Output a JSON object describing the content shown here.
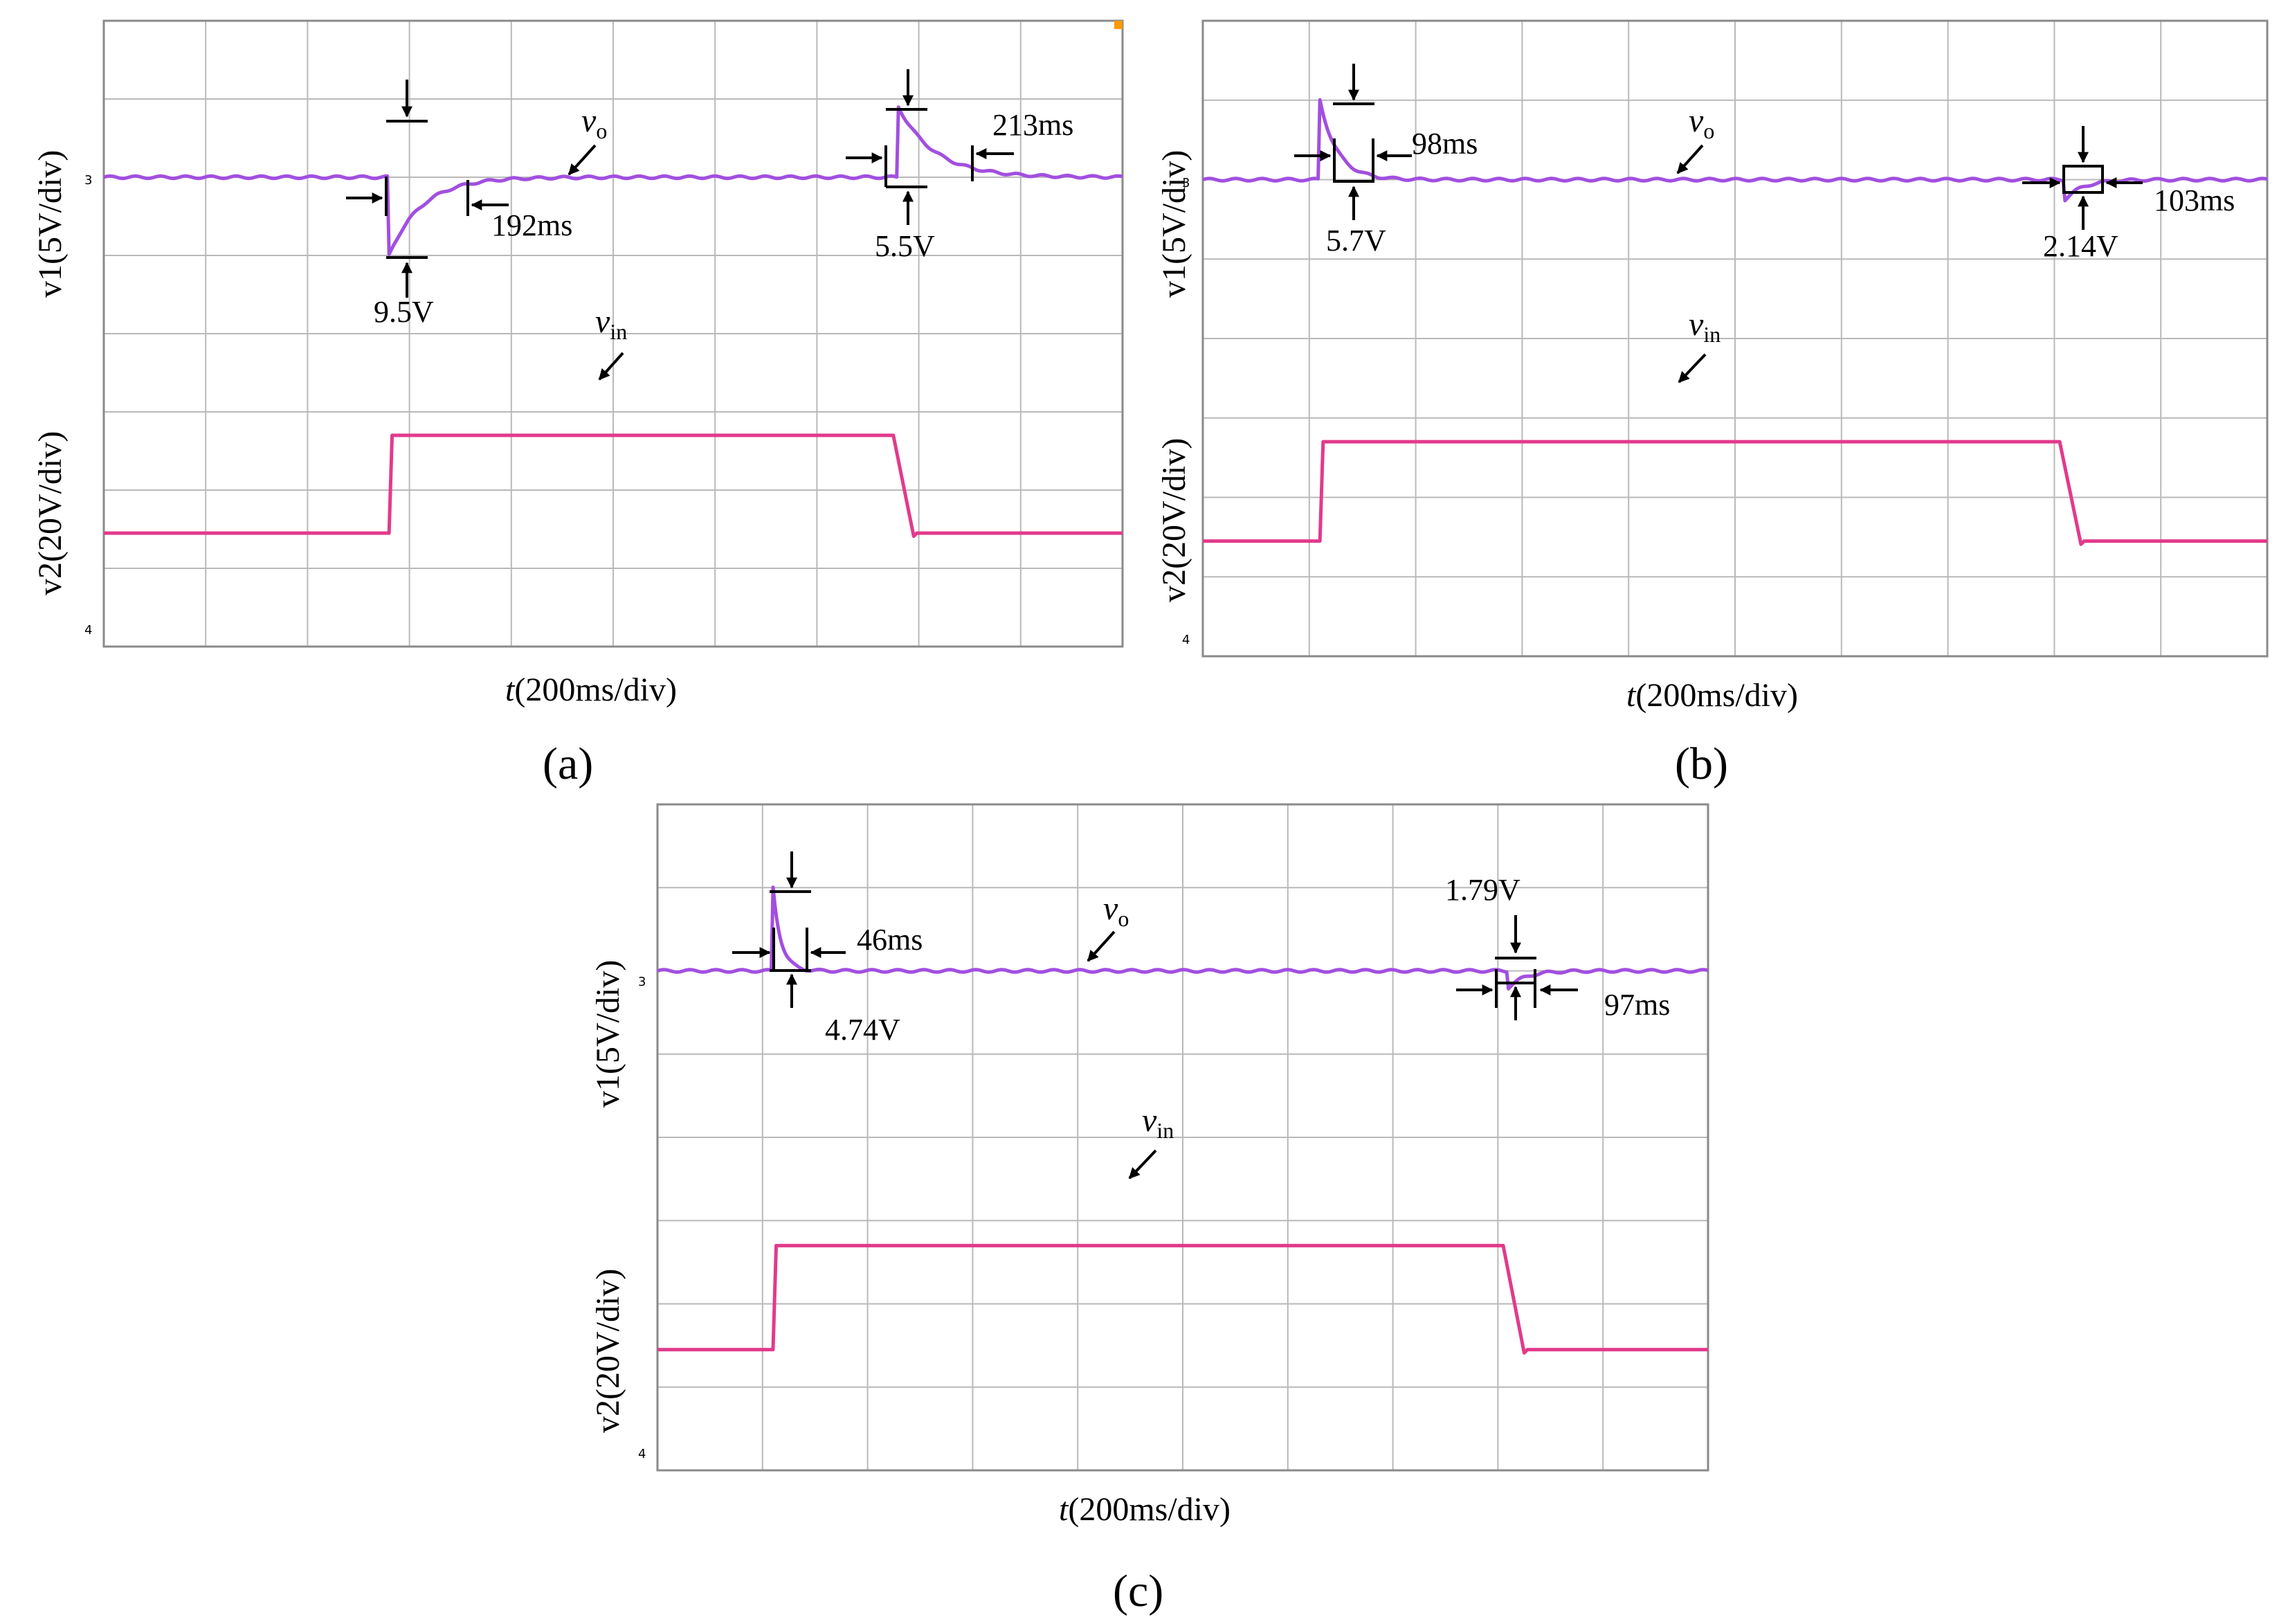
{
  "chart_data": [
    {
      "id": "a",
      "type": "line",
      "subplot_label": "(a)",
      "x_label_italic": "t",
      "x_label_rest": "(200ms/div)",
      "y_label_top": "v1(5V/div)",
      "y_label_bottom": "v2(20V/div)",
      "ch3_marker": "3",
      "ch4_marker": "4",
      "series": [
        {
          "name": "vo",
          "label": "v",
          "sub": "o",
          "channel": 3,
          "scale": "5V/div",
          "events": [
            {
              "time_div": 2.8,
              "dip_div": -1.0,
              "recovery_ms": 192,
              "annotation_volt": "9.5V",
              "annotation_time": "192ms"
            },
            {
              "time_div": 7.8,
              "peak_div": 0.9,
              "recovery_ms": 213,
              "annotation_volt": "5.5V",
              "annotation_time": "213ms"
            }
          ]
        },
        {
          "name": "vin",
          "label": "v",
          "sub": "in",
          "channel": 4,
          "scale": "20V/div",
          "step_up_div": 2.8,
          "step_down_div": 7.8,
          "low_level_div": 2.6,
          "high_level_div": 3.8
        }
      ]
    },
    {
      "id": "b",
      "type": "line",
      "subplot_label": "(b)",
      "x_label_italic": "t",
      "x_label_rest": "(200ms/div)",
      "y_label_top": "v1(5V/div)",
      "y_label_bottom": "v2(20V/div)",
      "ch3_marker": "3",
      "ch4_marker": "4",
      "series": [
        {
          "name": "vo",
          "label": "v",
          "sub": "o",
          "channel": 3,
          "scale": "5V/div",
          "events": [
            {
              "time_div": 1.1,
              "peak_div": 1.0,
              "recovery_ms": 98,
              "annotation_volt": "5.7V",
              "annotation_time": "98ms"
            },
            {
              "time_div": 8.1,
              "dip_div": -0.25,
              "recovery_ms": 103,
              "annotation_volt": "2.14V",
              "annotation_time": "103ms"
            }
          ]
        },
        {
          "name": "vin",
          "label": "v",
          "sub": "in",
          "channel": 4,
          "scale": "20V/div",
          "step_up_div": 1.1,
          "step_down_div": 8.1
        }
      ]
    },
    {
      "id": "c",
      "type": "line",
      "subplot_label": "(c)",
      "x_label_italic": "t",
      "x_label_rest": "(200ms/div)",
      "y_label_top": "v1(5V/div)",
      "y_label_bottom": "v2(20V/div)",
      "ch3_marker": "3",
      "ch4_marker": "4",
      "series": [
        {
          "name": "vo",
          "label": "v",
          "sub": "o",
          "channel": 3,
          "scale": "5V/div",
          "events": [
            {
              "time_div": 1.1,
              "peak_div": 1.0,
              "recovery_ms": 46,
              "annotation_volt": "4.74V",
              "annotation_time": "46ms"
            },
            {
              "time_div": 8.1,
              "dip_div": -0.2,
              "recovery_ms": 97,
              "annotation_volt": "1.79V",
              "annotation_time": "97ms"
            }
          ]
        },
        {
          "name": "vin",
          "label": "v",
          "sub": "in",
          "channel": 4,
          "scale": "20V/div",
          "step_up_div": 1.1,
          "step_down_div": 8.1
        }
      ]
    }
  ],
  "colors": {
    "vo_trace": "#a24fe0",
    "vin_trace": "#e23a8c",
    "grid": "#b9b9b9",
    "ch3_marker": "#b040ff",
    "ch4_marker": "#ff40b0",
    "corner_marker": "#ff9900"
  }
}
